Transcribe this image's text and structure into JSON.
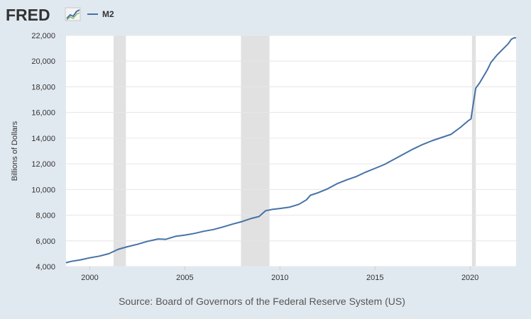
{
  "brand": {
    "name": "FRED",
    "logo_icon": "trend-chart-icon"
  },
  "chart_data": {
    "type": "line",
    "title": "",
    "xlabel": "",
    "ylabel": "Billions of Dollars",
    "xlim": [
      1998.75,
      2022.42
    ],
    "ylim": [
      4000,
      22000
    ],
    "grid": true,
    "legend_position": "top-left",
    "y_ticks": [
      {
        "value": 4000,
        "label": "4,000"
      },
      {
        "value": 6000,
        "label": "6,000"
      },
      {
        "value": 8000,
        "label": "8,000"
      },
      {
        "value": 10000,
        "label": "10,000"
      },
      {
        "value": 12000,
        "label": "12,000"
      },
      {
        "value": 14000,
        "label": "14,000"
      },
      {
        "value": 16000,
        "label": "16,000"
      },
      {
        "value": 18000,
        "label": "18,000"
      },
      {
        "value": 20000,
        "label": "20,000"
      },
      {
        "value": 22000,
        "label": "22,000"
      }
    ],
    "x_ticks": [
      {
        "value": 2000,
        "label": "2000"
      },
      {
        "value": 2005,
        "label": "2005"
      },
      {
        "value": 2010,
        "label": "2010"
      },
      {
        "value": 2015,
        "label": "2015"
      },
      {
        "value": 2020,
        "label": "2020"
      }
    ],
    "recessions": [
      {
        "start": 2001.25,
        "end": 2001.9
      },
      {
        "start": 2007.95,
        "end": 2009.45
      },
      {
        "start": 2020.1,
        "end": 2020.3
      }
    ],
    "series": [
      {
        "name": "M2",
        "color": "#4572a7",
        "x": [
          1998.75,
          1999.0,
          1999.5,
          2000.0,
          2000.5,
          2001.0,
          2001.5,
          2002.0,
          2002.5,
          2003.0,
          2003.6,
          2004.0,
          2004.5,
          2005.0,
          2005.5,
          2006.0,
          2006.5,
          2007.0,
          2007.5,
          2008.0,
          2008.5,
          2008.9,
          2009.25,
          2009.6,
          2010.0,
          2010.5,
          2011.0,
          2011.4,
          2011.6,
          2012.0,
          2012.5,
          2013.0,
          2013.5,
          2014.0,
          2014.5,
          2015.0,
          2015.5,
          2016.0,
          2016.5,
          2017.0,
          2017.5,
          2018.0,
          2018.5,
          2019.0,
          2019.5,
          2019.9,
          2020.05,
          2020.15,
          2020.3,
          2020.5,
          2020.9,
          2021.1,
          2021.4,
          2021.7,
          2022.0,
          2022.17,
          2022.33,
          2022.42
        ],
        "values": [
          4300,
          4400,
          4520,
          4680,
          4810,
          5000,
          5350,
          5550,
          5730,
          5950,
          6150,
          6120,
          6350,
          6450,
          6580,
          6750,
          6880,
          7080,
          7300,
          7500,
          7750,
          7900,
          8350,
          8450,
          8520,
          8620,
          8850,
          9200,
          9550,
          9750,
          10050,
          10450,
          10750,
          11000,
          11350,
          11650,
          11950,
          12350,
          12750,
          13150,
          13500,
          13800,
          14050,
          14300,
          14850,
          15350,
          15500,
          16500,
          17900,
          18300,
          19300,
          19900,
          20450,
          20900,
          21350,
          21700,
          21830,
          21800
        ]
      }
    ]
  },
  "source": {
    "text": "Source: Board of Governors of the Federal Reserve System (US)"
  }
}
